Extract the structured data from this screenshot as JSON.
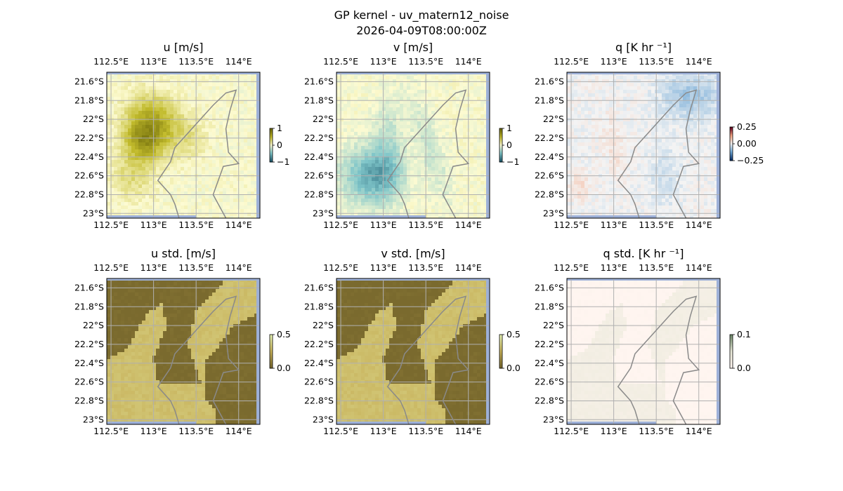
{
  "figure": {
    "title_line1": "GP kernel - uv_matern12_noise",
    "title_line2": "2026-04-09T08:00:00Z"
  },
  "colors": {
    "land": "#f4f4f4",
    "water": "#9db0d8",
    "coast": "#8a8a8a",
    "grid": "#b0b0b0",
    "frame": "#000000"
  },
  "chart_data": [
    {
      "type": "heatmap",
      "title": "u [m/s]",
      "x_ticks": [
        "112.5°E",
        "113°E",
        "113.5°E",
        "114°E"
      ],
      "y_ticks": [
        "21.6°S",
        "21.8°S",
        "22°S",
        "22.2°S",
        "22.4°S",
        "22.6°S",
        "22.8°S",
        "23°S"
      ],
      "colorbar": {
        "ticks": [
          "1",
          "0",
          "−1"
        ],
        "range": [
          -1,
          1
        ],
        "colormap": [
          "#1e5a6e",
          "#7fc5c9",
          "#fdfbd2",
          "#c2bb2c",
          "#6e6a0a"
        ]
      },
      "features": [
        {
          "shape": "ellipse",
          "cx": 113.0,
          "cy": -22.05,
          "rx": 0.32,
          "ry": 0.28,
          "angle": -35,
          "value": 0.65
        },
        {
          "shape": "ellipse",
          "cx": 112.85,
          "cy": -22.25,
          "rx": 0.22,
          "ry": 0.2,
          "angle": -35,
          "value": 0.45
        },
        {
          "shape": "ellipse",
          "cx": 112.75,
          "cy": -22.6,
          "rx": 0.25,
          "ry": 0.25,
          "angle": 0,
          "value": 0.25
        },
        {
          "shape": "ellipse",
          "cx": 113.45,
          "cy": -22.2,
          "rx": 0.2,
          "ry": 0.22,
          "angle": 0,
          "value": 0.15
        }
      ]
    },
    {
      "type": "heatmap",
      "title": "v [m/s]",
      "x_ticks": [
        "112.5°E",
        "113°E",
        "113.5°E",
        "114°E"
      ],
      "y_ticks": [
        "21.6°S",
        "21.8°S",
        "22°S",
        "22.2°S",
        "22.4°S",
        "22.6°S",
        "22.8°S",
        "23°S"
      ],
      "colorbar": {
        "ticks": [
          "1",
          "0",
          "−1"
        ],
        "range": [
          -1,
          1
        ],
        "colormap": [
          "#1e5a6e",
          "#7fc5c9",
          "#fdfbd2",
          "#c2bb2c",
          "#6e6a0a"
        ]
      },
      "features": [
        {
          "shape": "ellipse",
          "cx": 112.85,
          "cy": -22.6,
          "rx": 0.35,
          "ry": 0.3,
          "angle": 0,
          "value": -0.6
        },
        {
          "shape": "ellipse",
          "cx": 113.05,
          "cy": -22.3,
          "rx": 0.18,
          "ry": 0.5,
          "angle": 0,
          "value": -0.25
        },
        {
          "shape": "ellipse",
          "cx": 113.55,
          "cy": -22.3,
          "rx": 0.15,
          "ry": 0.6,
          "angle": 20,
          "value": -0.2
        }
      ]
    },
    {
      "type": "heatmap",
      "title": "q [K hr ⁻¹]",
      "x_ticks": [
        "112.5°E",
        "113°E",
        "113.5°E",
        "114°E"
      ],
      "y_ticks": [
        "21.6°S",
        "21.8°S",
        "22°S",
        "22.2°S",
        "22.4°S",
        "22.6°S",
        "22.8°S",
        "23°S"
      ],
      "colorbar": {
        "ticks": [
          "0.25",
          "0.00",
          "−0.25"
        ],
        "range": [
          -0.4,
          0.4
        ],
        "colormap": [
          "#08306b",
          "#6fa8d6",
          "#f4f4f4",
          "#f4a582",
          "#67001f"
        ]
      },
      "features": [
        {
          "shape": "ellipse",
          "cx": 113.9,
          "cy": -21.75,
          "rx": 0.35,
          "ry": 0.25,
          "angle": 0,
          "value": -0.12
        },
        {
          "shape": "ellipse",
          "cx": 113.6,
          "cy": -22.6,
          "rx": 0.2,
          "ry": 0.35,
          "angle": 0,
          "value": -0.05
        },
        {
          "shape": "ellipse",
          "cx": 113.0,
          "cy": -22.3,
          "rx": 0.1,
          "ry": 0.3,
          "angle": 15,
          "value": 0.05
        },
        {
          "shape": "ellipse",
          "cx": 112.6,
          "cy": -22.7,
          "rx": 0.1,
          "ry": 0.15,
          "angle": 0,
          "value": 0.06
        }
      ]
    },
    {
      "type": "heatmap",
      "title": "u std. [m/s]",
      "x_ticks": [
        "112.5°E",
        "113°E",
        "113.5°E",
        "114°E"
      ],
      "y_ticks": [
        "21.6°S",
        "21.8°S",
        "22°S",
        "22.2°S",
        "22.4°S",
        "22.6°S",
        "22.8°S",
        "23°S"
      ],
      "colorbar": {
        "ticks": [
          "0.5",
          "0.0"
        ],
        "range": [
          0,
          0.5
        ],
        "colormap": [
          "#7a6a2e",
          "#c7b15a",
          "#e8f5b4"
        ]
      },
      "features": [
        {
          "shape": "polygon",
          "points": [
            [
              112.45,
              -23.1
            ],
            [
              112.45,
              -22.35
            ],
            [
              112.7,
              -22.25
            ],
            [
              112.9,
              -21.9
            ],
            [
              113.1,
              -21.75
            ],
            [
              113.15,
              -22.0
            ],
            [
              113.0,
              -22.35
            ],
            [
              113.05,
              -22.6
            ],
            [
              113.55,
              -22.6
            ],
            [
              113.4,
              -22.2
            ],
            [
              113.5,
              -21.85
            ],
            [
              113.75,
              -21.6
            ],
            [
              113.85,
              -21.5
            ],
            [
              114.25,
              -21.5
            ],
            [
              114.25,
              -21.85
            ],
            [
              113.95,
              -22.0
            ],
            [
              113.6,
              -22.4
            ],
            [
              113.6,
              -22.75
            ],
            [
              113.75,
              -22.95
            ],
            [
              113.75,
              -23.1
            ]
          ],
          "value": 0.3
        }
      ]
    },
    {
      "type": "heatmap",
      "title": "v std. [m/s]",
      "x_ticks": [
        "112.5°E",
        "113°E",
        "113.5°E",
        "114°E"
      ],
      "y_ticks": [
        "21.6°S",
        "21.8°S",
        "22°S",
        "22.2°S",
        "22.4°S",
        "22.6°S",
        "22.8°S",
        "23°S"
      ],
      "colorbar": {
        "ticks": [
          "0.5",
          "0.0"
        ],
        "range": [
          0,
          0.5
        ],
        "colormap": [
          "#7a6a2e",
          "#c7b15a",
          "#e8f5b4"
        ]
      },
      "features": [
        {
          "shape": "polygon",
          "points": [
            [
              112.45,
              -23.1
            ],
            [
              112.45,
              -22.35
            ],
            [
              112.7,
              -22.25
            ],
            [
              112.9,
              -21.9
            ],
            [
              113.1,
              -21.75
            ],
            [
              113.15,
              -22.0
            ],
            [
              113.0,
              -22.35
            ],
            [
              113.05,
              -22.6
            ],
            [
              113.55,
              -22.6
            ],
            [
              113.4,
              -22.2
            ],
            [
              113.5,
              -21.85
            ],
            [
              113.75,
              -21.6
            ],
            [
              113.85,
              -21.5
            ],
            [
              114.25,
              -21.5
            ],
            [
              114.25,
              -21.85
            ],
            [
              113.95,
              -22.0
            ],
            [
              113.6,
              -22.4
            ],
            [
              113.6,
              -22.75
            ],
            [
              113.75,
              -22.95
            ],
            [
              113.75,
              -23.1
            ]
          ],
          "value": 0.3
        }
      ]
    },
    {
      "type": "heatmap",
      "title": "q std. [K hr ⁻¹]",
      "x_ticks": [
        "112.5°E",
        "113°E",
        "113.5°E",
        "114°E"
      ],
      "y_ticks": [
        "21.6°S",
        "21.8°S",
        "22°S",
        "22.2°S",
        "22.4°S",
        "22.6°S",
        "22.8°S",
        "23°S"
      ],
      "colorbar": {
        "ticks": [
          "0.1",
          "0.0"
        ],
        "range": [
          0,
          0.12
        ],
        "colormap": [
          "#fff5f0",
          "#e8e8d8",
          "#6f8a6a"
        ]
      },
      "features": [
        {
          "shape": "polygon",
          "points": [
            [
              112.45,
              -23.1
            ],
            [
              112.45,
              -22.35
            ],
            [
              112.7,
              -22.25
            ],
            [
              112.9,
              -21.9
            ],
            [
              113.1,
              -21.75
            ],
            [
              113.15,
              -22.0
            ],
            [
              113.0,
              -22.35
            ],
            [
              113.05,
              -22.6
            ],
            [
              113.55,
              -22.6
            ],
            [
              113.4,
              -22.2
            ],
            [
              113.5,
              -21.85
            ],
            [
              113.75,
              -21.6
            ],
            [
              113.85,
              -21.5
            ],
            [
              114.25,
              -21.5
            ],
            [
              114.25,
              -21.85
            ],
            [
              113.95,
              -22.0
            ],
            [
              113.6,
              -22.4
            ],
            [
              113.6,
              -22.75
            ],
            [
              113.75,
              -22.95
            ],
            [
              113.75,
              -23.1
            ]
          ],
          "value": 0.03
        }
      ]
    }
  ]
}
